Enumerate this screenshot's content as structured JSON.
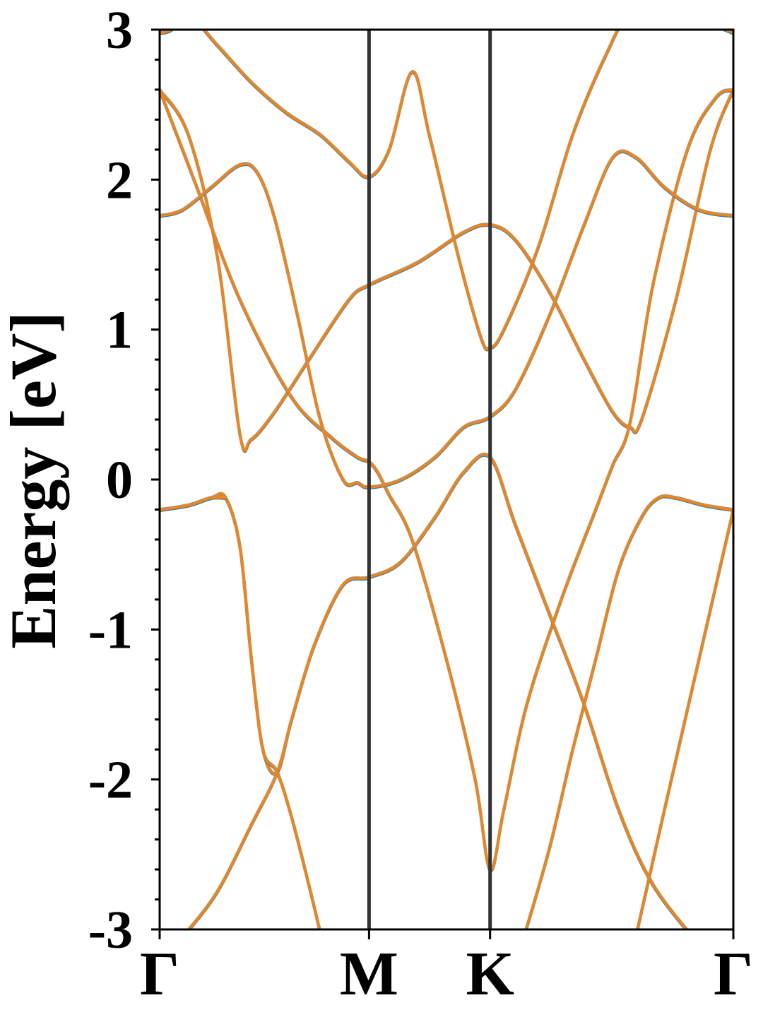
{
  "chart_data": {
    "type": "line",
    "title": "",
    "xlabel": "",
    "ylabel": "Energy [eV]",
    "ylim": [
      -3,
      3
    ],
    "yticks": [
      3,
      2,
      1,
      0,
      -1,
      -2,
      -3
    ],
    "ytick_labels": [
      "3",
      "2",
      "1",
      "0",
      "-1",
      "-2",
      "-3"
    ],
    "k_path": [
      {
        "label": "Γ",
        "k": 0.0
      },
      {
        "label": "M",
        "k": 0.365
      },
      {
        "label": "K",
        "k": 0.576
      },
      {
        "label": "Γ",
        "k": 1.0
      }
    ],
    "grid": false,
    "legend": "none",
    "colors": {
      "series_a": "#3a7fb0",
      "series_b": "#e0882e",
      "vlines": "#333333",
      "axes": "#000000"
    },
    "series": [
      {
        "color": "#e0882e",
        "bands": [
          [
            [
              0.0,
              2.6
            ],
            [
              0.05,
              2.3
            ],
            [
              0.1,
              1.5
            ],
            [
              0.14,
              0.3
            ],
            [
              0.16,
              0.27
            ],
            [
              0.2,
              0.45
            ],
            [
              0.26,
              0.8
            ],
            [
              0.33,
              1.2
            ],
            [
              0.365,
              1.3
            ],
            [
              0.45,
              1.45
            ],
            [
              0.53,
              1.65
            ],
            [
              0.576,
              1.7
            ],
            [
              0.62,
              1.6
            ],
            [
              0.68,
              1.25
            ],
            [
              0.74,
              0.8
            ],
            [
              0.79,
              0.45
            ],
            [
              0.82,
              0.35
            ],
            [
              0.84,
              0.4
            ],
            [
              0.9,
              1.2
            ],
            [
              0.96,
              2.2
            ],
            [
              1.0,
              2.6
            ]
          ],
          [
            [
              0.0,
              2.6
            ],
            [
              0.06,
              2.0
            ],
            [
              0.14,
              1.2
            ],
            [
              0.23,
              0.55
            ],
            [
              0.3,
              0.28
            ],
            [
              0.345,
              0.15
            ],
            [
              0.365,
              0.12
            ],
            [
              0.38,
              0.05
            ],
            [
              0.4,
              -0.1
            ],
            [
              0.44,
              -0.4
            ],
            [
              0.5,
              -1.2
            ],
            [
              0.55,
              -2.0
            ],
            [
              0.576,
              -2.6
            ],
            [
              0.6,
              -2.2
            ],
            [
              0.64,
              -1.5
            ],
            [
              0.7,
              -0.8
            ],
            [
              0.76,
              -0.2
            ],
            [
              0.79,
              0.1
            ],
            [
              0.82,
              0.38
            ],
            [
              0.86,
              1.3
            ],
            [
              0.92,
              2.2
            ],
            [
              0.97,
              2.55
            ],
            [
              1.0,
              2.6
            ]
          ],
          [
            [
              0.0,
              1.76
            ],
            [
              0.04,
              1.8
            ],
            [
              0.09,
              1.95
            ],
            [
              0.14,
              2.1
            ],
            [
              0.17,
              2.05
            ],
            [
              0.2,
              1.75
            ],
            [
              0.24,
              1.1
            ],
            [
              0.28,
              0.4
            ],
            [
              0.32,
              0.0
            ],
            [
              0.345,
              -0.02
            ],
            [
              0.365,
              -0.05
            ],
            [
              0.42,
              0.0
            ],
            [
              0.48,
              0.15
            ],
            [
              0.53,
              0.35
            ],
            [
              0.576,
              0.42
            ],
            [
              0.62,
              0.6
            ],
            [
              0.68,
              1.1
            ],
            [
              0.74,
              1.7
            ],
            [
              0.79,
              2.15
            ],
            [
              0.83,
              2.15
            ],
            [
              0.88,
              1.95
            ],
            [
              0.94,
              1.8
            ],
            [
              1.0,
              1.76
            ]
          ],
          [
            [
              0.0,
              2.98
            ],
            [
              0.02,
              3.0
            ],
            [
              0.05,
              3.1
            ],
            [
              0.1,
              2.9
            ],
            [
              0.16,
              2.65
            ],
            [
              0.22,
              2.45
            ],
            [
              0.28,
              2.3
            ],
            [
              0.33,
              2.12
            ],
            [
              0.365,
              2.02
            ],
            [
              0.4,
              2.2
            ],
            [
              0.44,
              2.72
            ],
            [
              0.47,
              2.3
            ],
            [
              0.52,
              1.5
            ],
            [
              0.56,
              0.95
            ],
            [
              0.576,
              0.88
            ],
            [
              0.6,
              1.0
            ],
            [
              0.66,
              1.55
            ],
            [
              0.72,
              2.3
            ],
            [
              0.78,
              2.85
            ],
            [
              0.82,
              3.1
            ],
            [
              0.9,
              3.2
            ],
            [
              0.96,
              3.05
            ],
            [
              1.0,
              2.98
            ]
          ],
          [
            [
              0.0,
              -0.2
            ],
            [
              0.05,
              -0.17
            ],
            [
              0.09,
              -0.12
            ],
            [
              0.115,
              -0.12
            ],
            [
              0.14,
              -0.45
            ],
            [
              0.16,
              -1.2
            ],
            [
              0.18,
              -1.8
            ],
            [
              0.205,
              -1.95
            ],
            [
              0.23,
              -1.6
            ],
            [
              0.27,
              -1.1
            ],
            [
              0.32,
              -0.7
            ],
            [
              0.365,
              -0.65
            ],
            [
              0.42,
              -0.55
            ],
            [
              0.48,
              -0.25
            ],
            [
              0.53,
              0.05
            ],
            [
              0.576,
              0.15
            ],
            [
              0.62,
              -0.3
            ],
            [
              0.68,
              -0.9
            ],
            [
              0.74,
              -1.5
            ],
            [
              0.8,
              -2.2
            ],
            [
              0.86,
              -2.7
            ],
            [
              0.94,
              -3.1
            ]
          ],
          [
            [
              0.0,
              -0.2
            ],
            [
              0.05,
              -0.17
            ],
            [
              0.09,
              -0.12
            ],
            [
              0.115,
              -0.12
            ],
            [
              0.14,
              -0.45
            ],
            [
              0.16,
              -1.2
            ],
            [
              0.18,
              -1.8
            ],
            [
              0.205,
              -1.95
            ],
            [
              0.23,
              -2.25
            ],
            [
              0.26,
              -2.7
            ],
            [
              0.285,
              -3.1
            ]
          ],
          [
            [
              0.04,
              -3.05
            ],
            [
              0.1,
              -2.75
            ],
            [
              0.16,
              -2.3
            ],
            [
              0.205,
              -1.95
            ],
            [
              0.23,
              -1.6
            ],
            [
              0.27,
              -1.1
            ],
            [
              0.32,
              -0.7
            ],
            [
              0.365,
              -0.65
            ],
            [
              0.42,
              -0.55
            ],
            [
              0.48,
              -0.25
            ],
            [
              0.53,
              0.05
            ],
            [
              0.576,
              0.15
            ],
            [
              0.62,
              -0.3
            ],
            [
              0.68,
              -0.9
            ],
            [
              0.74,
              -1.5
            ],
            [
              0.8,
              -2.2
            ],
            [
              0.86,
              -2.7
            ],
            [
              0.94,
              -3.1
            ]
          ],
          [
            [
              0.0,
              -0.2
            ],
            [
              0.05,
              -0.17
            ],
            [
              0.09,
              -0.12
            ],
            [
              0.115,
              -0.12
            ]
          ],
          [
            [
              0.635,
              -3.05
            ],
            [
              0.68,
              -2.45
            ],
            [
              0.72,
              -1.8
            ],
            [
              0.76,
              -1.2
            ],
            [
              0.8,
              -0.6
            ],
            [
              0.84,
              -0.25
            ],
            [
              0.87,
              -0.12
            ],
            [
              0.9,
              -0.12
            ],
            [
              0.95,
              -0.17
            ],
            [
              1.0,
              -0.2
            ]
          ],
          [
            [
              0.83,
              -3.05
            ],
            [
              0.88,
              -2.2
            ],
            [
              0.94,
              -1.2
            ],
            [
              1.0,
              -0.2
            ]
          ]
        ]
      }
    ]
  }
}
